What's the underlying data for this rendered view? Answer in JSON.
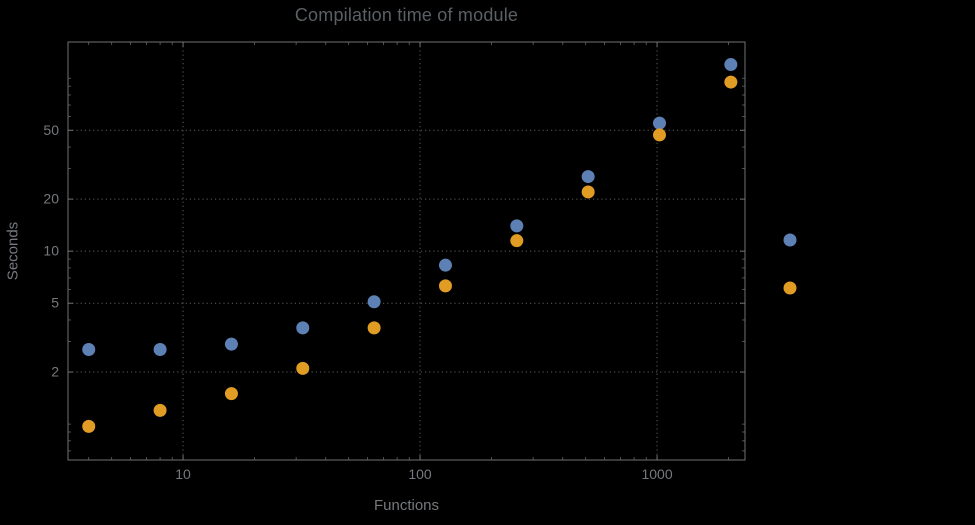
{
  "chart_data": {
    "type": "scatter",
    "title": "Compilation time of module",
    "xlabel": "Functions",
    "ylabel": "Seconds",
    "x_scale": "log",
    "y_scale": "log",
    "grid": true,
    "grid_style": "dotted",
    "x_ticks": [
      10,
      100,
      1000
    ],
    "y_ticks": [
      2,
      5,
      10,
      20,
      50
    ],
    "x_range": [
      3.27,
      2350
    ],
    "y_range": [
      0.62,
      162
    ],
    "series": [
      {
        "name": "blue",
        "color": "#5E81B5",
        "points": [
          [
            4,
            2.7
          ],
          [
            8,
            2.7
          ],
          [
            16,
            2.9
          ],
          [
            32,
            3.6
          ],
          [
            64,
            5.1
          ],
          [
            128,
            8.3
          ],
          [
            256,
            14
          ],
          [
            512,
            27
          ],
          [
            1024,
            55
          ],
          [
            2048,
            120
          ]
        ]
      },
      {
        "name": "orange",
        "color": "#E19C24",
        "points": [
          [
            4,
            0.97
          ],
          [
            8,
            1.2
          ],
          [
            16,
            1.5
          ],
          [
            32,
            2.1
          ],
          [
            64,
            3.6
          ],
          [
            128,
            6.3
          ],
          [
            256,
            11.5
          ],
          [
            512,
            22
          ],
          [
            1024,
            47
          ],
          [
            2048,
            95
          ]
        ]
      }
    ],
    "legend": {
      "position": "right-center-outside",
      "markers": [
        {
          "color": "#5E81B5"
        },
        {
          "color": "#E19C24"
        }
      ]
    },
    "style": {
      "background": "#000000",
      "title_color": "#5a6064",
      "text_color": "#75797d",
      "grid_color": "#5e5e5e",
      "frame_color": "#6e7276"
    }
  }
}
